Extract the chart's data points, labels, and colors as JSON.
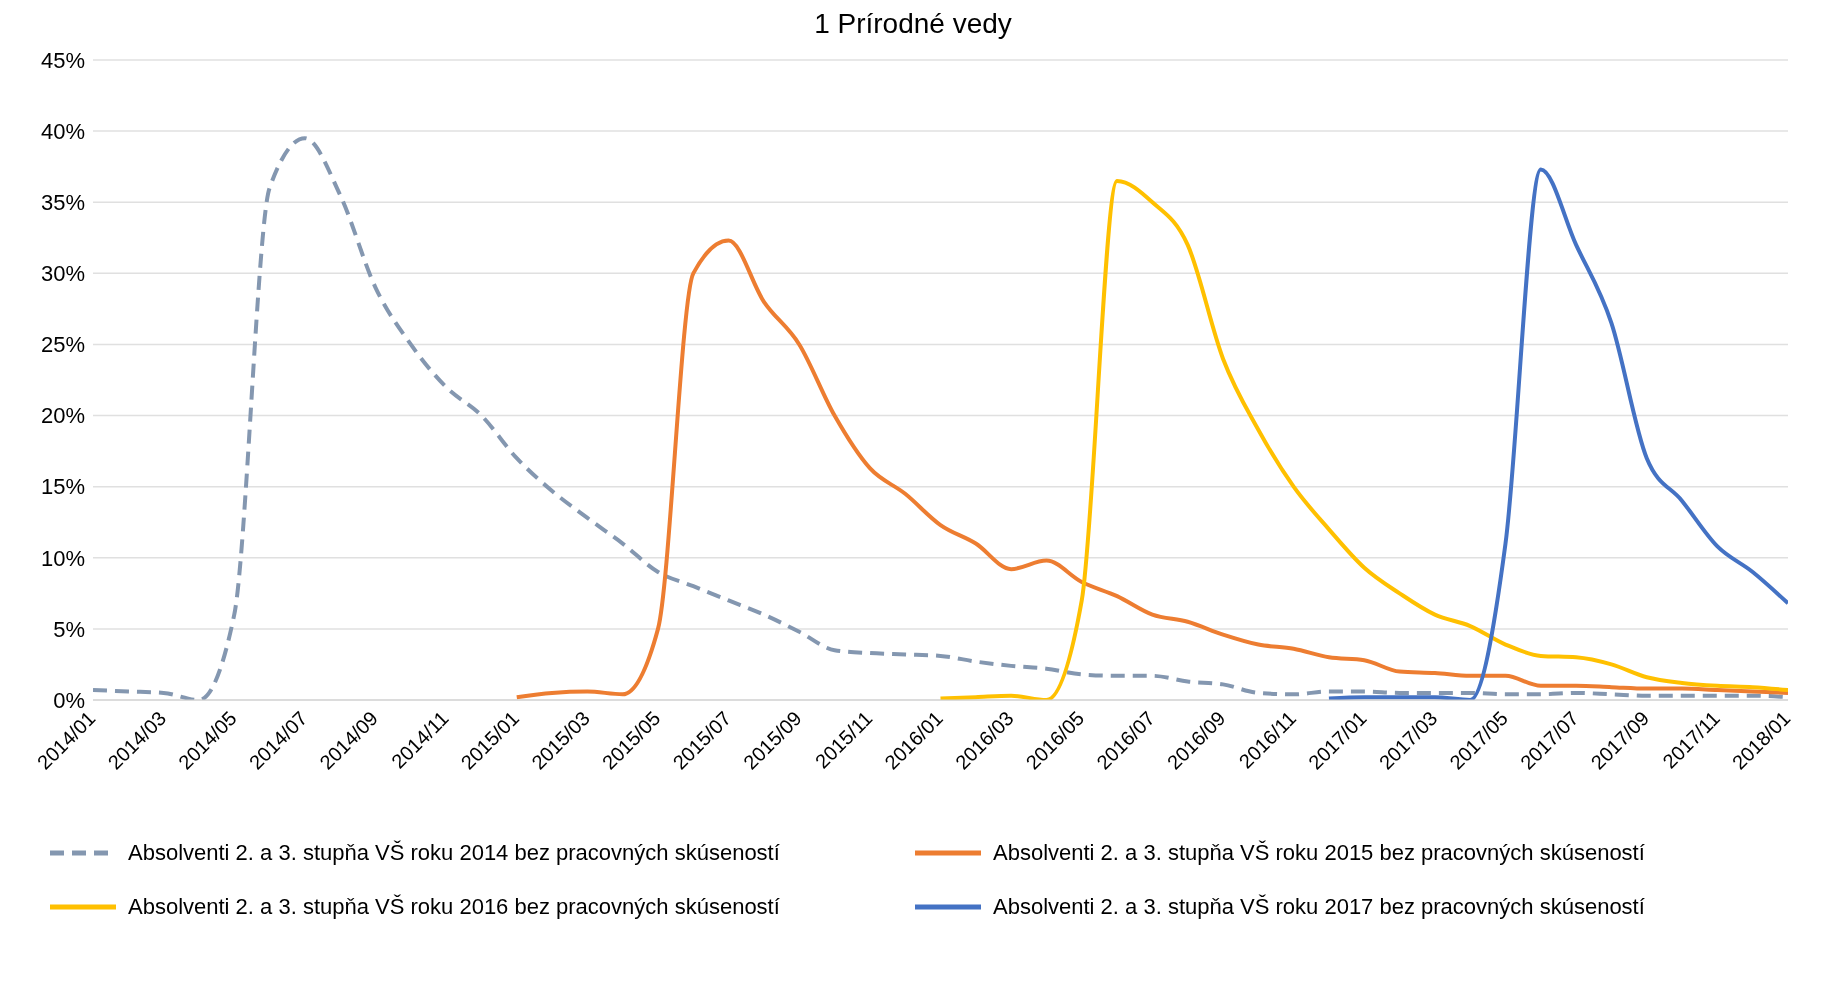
{
  "chart_data": {
    "type": "line",
    "title": "1 Prírodné vedy",
    "categories": [
      "2014/01",
      null,
      "2014/03",
      null,
      "2014/05",
      null,
      "2014/07",
      null,
      "2014/09",
      null,
      "2014/11",
      null,
      "2015/01",
      null,
      "2015/03",
      null,
      "2015/05",
      null,
      "2015/07",
      null,
      "2015/09",
      null,
      "2015/11",
      null,
      "2016/01",
      null,
      "2016/03",
      null,
      "2016/05",
      null,
      "2016/07",
      null,
      "2016/09",
      null,
      "2016/11",
      null,
      "2017/01",
      null,
      "2017/03",
      null,
      "2017/05",
      null,
      "2017/07",
      null,
      "2017/09",
      null,
      "2017/11",
      null,
      "2018/01"
    ],
    "series": [
      {
        "name": "Absolventi 2. a 3. stupňa VŠ roku 2014 bez pracovných skúseností",
        "color": "#8497b0",
        "line_style": "dashed",
        "values": [
          0.7,
          0.6,
          0.5,
          0,
          6,
          36,
          39.5,
          35.5,
          29,
          25,
          22,
          20,
          17,
          14.7,
          12.8,
          11,
          9,
          8,
          7,
          6,
          4.8,
          3.5,
          3.3,
          3.2,
          3.1,
          2.7,
          2.4,
          2.2,
          1.8,
          1.7,
          1.7,
          1.3,
          1.1,
          0.5,
          0.4,
          0.6,
          0.6,
          0.5,
          0.5,
          0.5,
          0.4,
          0.4,
          0.5,
          0.4,
          0.3,
          0.3,
          0.3,
          0.3,
          0.2
        ]
      },
      {
        "name": "Absolventi 2. a 3. stupňa VŠ roku 2015 bez pracovných skúseností",
        "color": "#ed7d31",
        "line_style": "solid",
        "values": [
          null,
          null,
          null,
          null,
          null,
          null,
          null,
          null,
          null,
          null,
          null,
          null,
          0.2,
          0.5,
          0.6,
          0.4,
          5,
          30,
          32.3,
          28,
          25,
          20,
          16.3,
          14.5,
          12.3,
          11,
          9.2,
          9.8,
          8.3,
          7.3,
          6,
          5.5,
          4.6,
          3.9,
          3.6,
          3,
          2.8,
          2,
          1.9,
          1.7,
          1.7,
          1,
          1,
          0.9,
          0.8,
          0.8,
          0.7,
          0.6,
          0.5
        ]
      },
      {
        "name": "Absolventi 2. a 3. stupňa VŠ roku 2016 bez pracovných skúseností",
        "color": "#ffc000",
        "line_style": "solid",
        "values": [
          null,
          null,
          null,
          null,
          null,
          null,
          null,
          null,
          null,
          null,
          null,
          null,
          null,
          null,
          null,
          null,
          null,
          null,
          null,
          null,
          null,
          null,
          null,
          null,
          0.1,
          0.2,
          0.3,
          0,
          7,
          36.5,
          35,
          32,
          24,
          19,
          15,
          12,
          9.3,
          7.5,
          6,
          5.2,
          3.9,
          3.1,
          3,
          2.5,
          1.6,
          1.2,
          1,
          0.9,
          0.7
        ]
      },
      {
        "name": "Absolventi 2. a 3. stupňa VŠ roku 2017 bez pracovných skúseností",
        "color": "#4472c4",
        "line_style": "solid",
        "values": [
          null,
          null,
          null,
          null,
          null,
          null,
          null,
          null,
          null,
          null,
          null,
          null,
          null,
          null,
          null,
          null,
          null,
          null,
          null,
          null,
          null,
          null,
          null,
          null,
          null,
          null,
          null,
          null,
          null,
          null,
          null,
          null,
          null,
          null,
          null,
          0.1,
          0.2,
          0.2,
          0.2,
          0,
          11,
          37.3,
          32,
          26.5,
          17,
          14,
          10.8,
          9,
          6.8
        ]
      }
    ],
    "ylim": [
      0,
      45
    ],
    "yticks": [
      {
        "value": 0,
        "label": "0%"
      },
      {
        "value": 5,
        "label": "5%"
      },
      {
        "value": 10,
        "label": "10%"
      },
      {
        "value": 15,
        "label": "15%"
      },
      {
        "value": 20,
        "label": "20%"
      },
      {
        "value": 25,
        "label": "25%"
      },
      {
        "value": 30,
        "label": "30%"
      },
      {
        "value": 35,
        "label": "35%"
      },
      {
        "value": 40,
        "label": "40%"
      },
      {
        "value": 45,
        "label": "45%"
      }
    ],
    "grid": "y",
    "legend": "bottom",
    "marker": "none"
  }
}
